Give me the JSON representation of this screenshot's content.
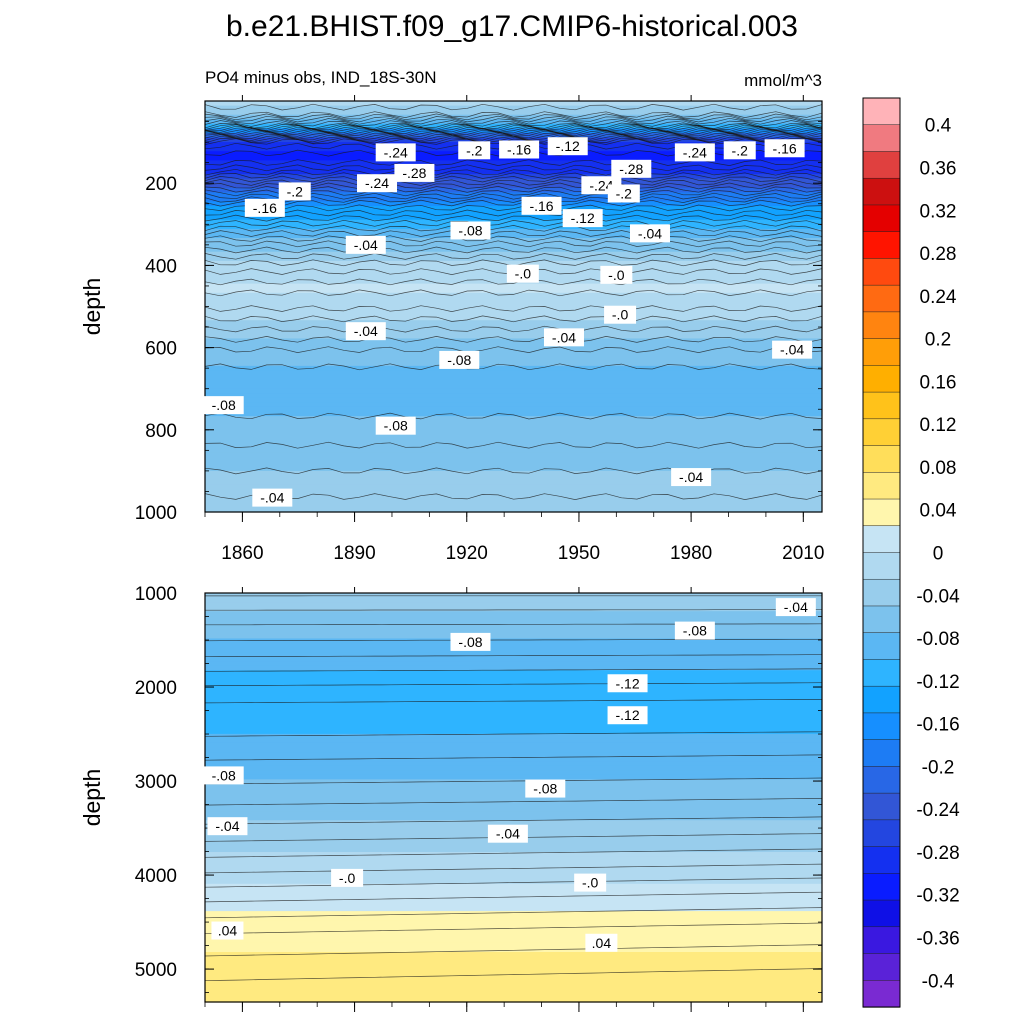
{
  "page": {
    "title": "b.e21.BHIST.f09_g17.CMIP6-historical.003",
    "subtitle_left": "PO4 minus obs, IND_18S-30N",
    "subtitle_right": "mmol/m^3"
  },
  "chart_data": [
    {
      "type": "heatmap",
      "panel": "top",
      "ylabel": "depth",
      "xlim": [
        1850,
        2015
      ],
      "ylim": [
        1000,
        0
      ],
      "x_ticks": [
        1860,
        1890,
        1920,
        1950,
        1980,
        2010
      ],
      "y_ticks": [
        200,
        400,
        600,
        800,
        1000
      ],
      "profile": [
        {
          "depth": 0,
          "value": -0.02
        },
        {
          "depth": 30,
          "value": -0.03
        },
        {
          "depth": 60,
          "value": -0.1
        },
        {
          "depth": 80,
          "value": -0.2
        },
        {
          "depth": 100,
          "value": -0.28
        },
        {
          "depth": 140,
          "value": -0.31
        },
        {
          "depth": 170,
          "value": -0.28
        },
        {
          "depth": 210,
          "value": -0.22
        },
        {
          "depth": 250,
          "value": -0.16
        },
        {
          "depth": 300,
          "value": -0.11
        },
        {
          "depth": 350,
          "value": -0.06
        },
        {
          "depth": 400,
          "value": -0.02
        },
        {
          "depth": 450,
          "value": 0.005
        },
        {
          "depth": 500,
          "value": -0.01
        },
        {
          "depth": 560,
          "value": -0.04
        },
        {
          "depth": 620,
          "value": -0.07
        },
        {
          "depth": 700,
          "value": -0.085
        },
        {
          "depth": 800,
          "value": -0.07
        },
        {
          "depth": 900,
          "value": -0.05
        },
        {
          "depth": 1000,
          "value": -0.03
        }
      ],
      "contour_labels": [
        {
          "text": "-.24",
          "x": 1901,
          "y": 125
        },
        {
          "text": "-.2",
          "x": 1922,
          "y": 120
        },
        {
          "text": "-.16",
          "x": 1934,
          "y": 118
        },
        {
          "text": "-.12",
          "x": 1947,
          "y": 110
        },
        {
          "text": "-.24",
          "x": 1981,
          "y": 125
        },
        {
          "text": "-.2",
          "x": 1993,
          "y": 120
        },
        {
          "text": "-.16",
          "x": 2005,
          "y": 115
        },
        {
          "text": "-.28",
          "x": 1906,
          "y": 175
        },
        {
          "text": "-.28",
          "x": 1964,
          "y": 165
        },
        {
          "text": "-.24",
          "x": 1896,
          "y": 200
        },
        {
          "text": "-.2",
          "x": 1874,
          "y": 220
        },
        {
          "text": "-.24",
          "x": 1956,
          "y": 205
        },
        {
          "text": "-.2",
          "x": 1962,
          "y": 225
        },
        {
          "text": "-.16",
          "x": 1866,
          "y": 260
        },
        {
          "text": "-.16",
          "x": 1940,
          "y": 255
        },
        {
          "text": "-.12",
          "x": 1951,
          "y": 285
        },
        {
          "text": "-.08",
          "x": 1921,
          "y": 315
        },
        {
          "text": "-.04",
          "x": 1893,
          "y": 350
        },
        {
          "text": "-.04",
          "x": 1969,
          "y": 322
        },
        {
          "text": "-.0",
          "x": 1935,
          "y": 420
        },
        {
          "text": "-.0",
          "x": 1960,
          "y": 423
        },
        {
          "text": "-.0",
          "x": 1961,
          "y": 520
        },
        {
          "text": "-.04",
          "x": 1893,
          "y": 560
        },
        {
          "text": "-.04",
          "x": 1946,
          "y": 575
        },
        {
          "text": "-.04",
          "x": 2007,
          "y": 605
        },
        {
          "text": "-.08",
          "x": 1918,
          "y": 630
        },
        {
          "text": "-.08",
          "x": 1855,
          "y": 740
        },
        {
          "text": "-.08",
          "x": 1901,
          "y": 790
        },
        {
          "text": "-.04",
          "x": 1980,
          "y": 915
        },
        {
          "text": "-.04",
          "x": 1868,
          "y": 965
        }
      ]
    },
    {
      "type": "heatmap",
      "panel": "bottom",
      "ylabel": "depth",
      "xlim": [
        1850,
        2015
      ],
      "ylim": [
        5350,
        1000
      ],
      "y_ticks": [
        1000,
        2000,
        3000,
        4000,
        5000
      ],
      "profile": [
        {
          "depth": 1000,
          "value": -0.035
        },
        {
          "depth": 1300,
          "value": -0.06
        },
        {
          "depth": 1700,
          "value": -0.09
        },
        {
          "depth": 2000,
          "value": -0.115
        },
        {
          "depth": 2300,
          "value": -0.11
        },
        {
          "depth": 2700,
          "value": -0.09
        },
        {
          "depth": 3100,
          "value": -0.07
        },
        {
          "depth": 3500,
          "value": -0.045
        },
        {
          "depth": 3900,
          "value": -0.015
        },
        {
          "depth": 4200,
          "value": 0.01
        },
        {
          "depth": 4600,
          "value": 0.04
        },
        {
          "depth": 5000,
          "value": 0.06
        },
        {
          "depth": 5350,
          "value": 0.075
        }
      ],
      "contour_labels": [
        {
          "text": "-.04",
          "x": 2008,
          "y": 1150
        },
        {
          "text": "-.08",
          "x": 1921,
          "y": 1520
        },
        {
          "text": "-.08",
          "x": 1981,
          "y": 1400
        },
        {
          "text": "-.12",
          "x": 1963,
          "y": 1960
        },
        {
          "text": "-.12",
          "x": 1963,
          "y": 2300
        },
        {
          "text": "-.08",
          "x": 1855,
          "y": 2940
        },
        {
          "text": "-.08",
          "x": 1941,
          "y": 3080
        },
        {
          "text": "-.04",
          "x": 1856,
          "y": 3480
        },
        {
          "text": "-.04",
          "x": 1931,
          "y": 3560
        },
        {
          "text": "-.0",
          "x": 1888,
          "y": 4030
        },
        {
          "text": "-.0",
          "x": 1953,
          "y": 4080
        },
        {
          "text": ".04",
          "x": 1856,
          "y": 4590
        },
        {
          "text": ".04",
          "x": 1956,
          "y": 4720
        }
      ]
    }
  ],
  "colorbar": {
    "labels": [
      "0.4",
      "0.36",
      "0.32",
      "0.28",
      "0.24",
      "0.2",
      "0.16",
      "0.12",
      "0.08",
      "0.04",
      "0",
      "-0.04",
      "-0.08",
      "-0.12",
      "-0.16",
      "-0.2",
      "-0.24",
      "-0.28",
      "-0.32",
      "-0.36",
      "-0.4"
    ],
    "colors": [
      "#ffb3b8",
      "#f07a80",
      "#e0403f",
      "#cc1010",
      "#e40000",
      "#ff1400",
      "#ff4a0f",
      "#ff6a12",
      "#ff8410",
      "#ff9e08",
      "#ffaf00",
      "#ffc21a",
      "#ffd035",
      "#ffde5a",
      "#ffea80",
      "#fff6ad",
      "#c6e4f4",
      "#b0d9f0",
      "#98cdec",
      "#7cc2ed",
      "#5bb7f3",
      "#2eb4ff",
      "#12a2ff",
      "#168fff",
      "#1d7cf4",
      "#2867e6",
      "#3256d6",
      "#2346e0",
      "#1430f0",
      "#0a1cff",
      "#0f10e6",
      "#3a18e0",
      "#5a22d8",
      "#7a2ad2"
    ]
  }
}
